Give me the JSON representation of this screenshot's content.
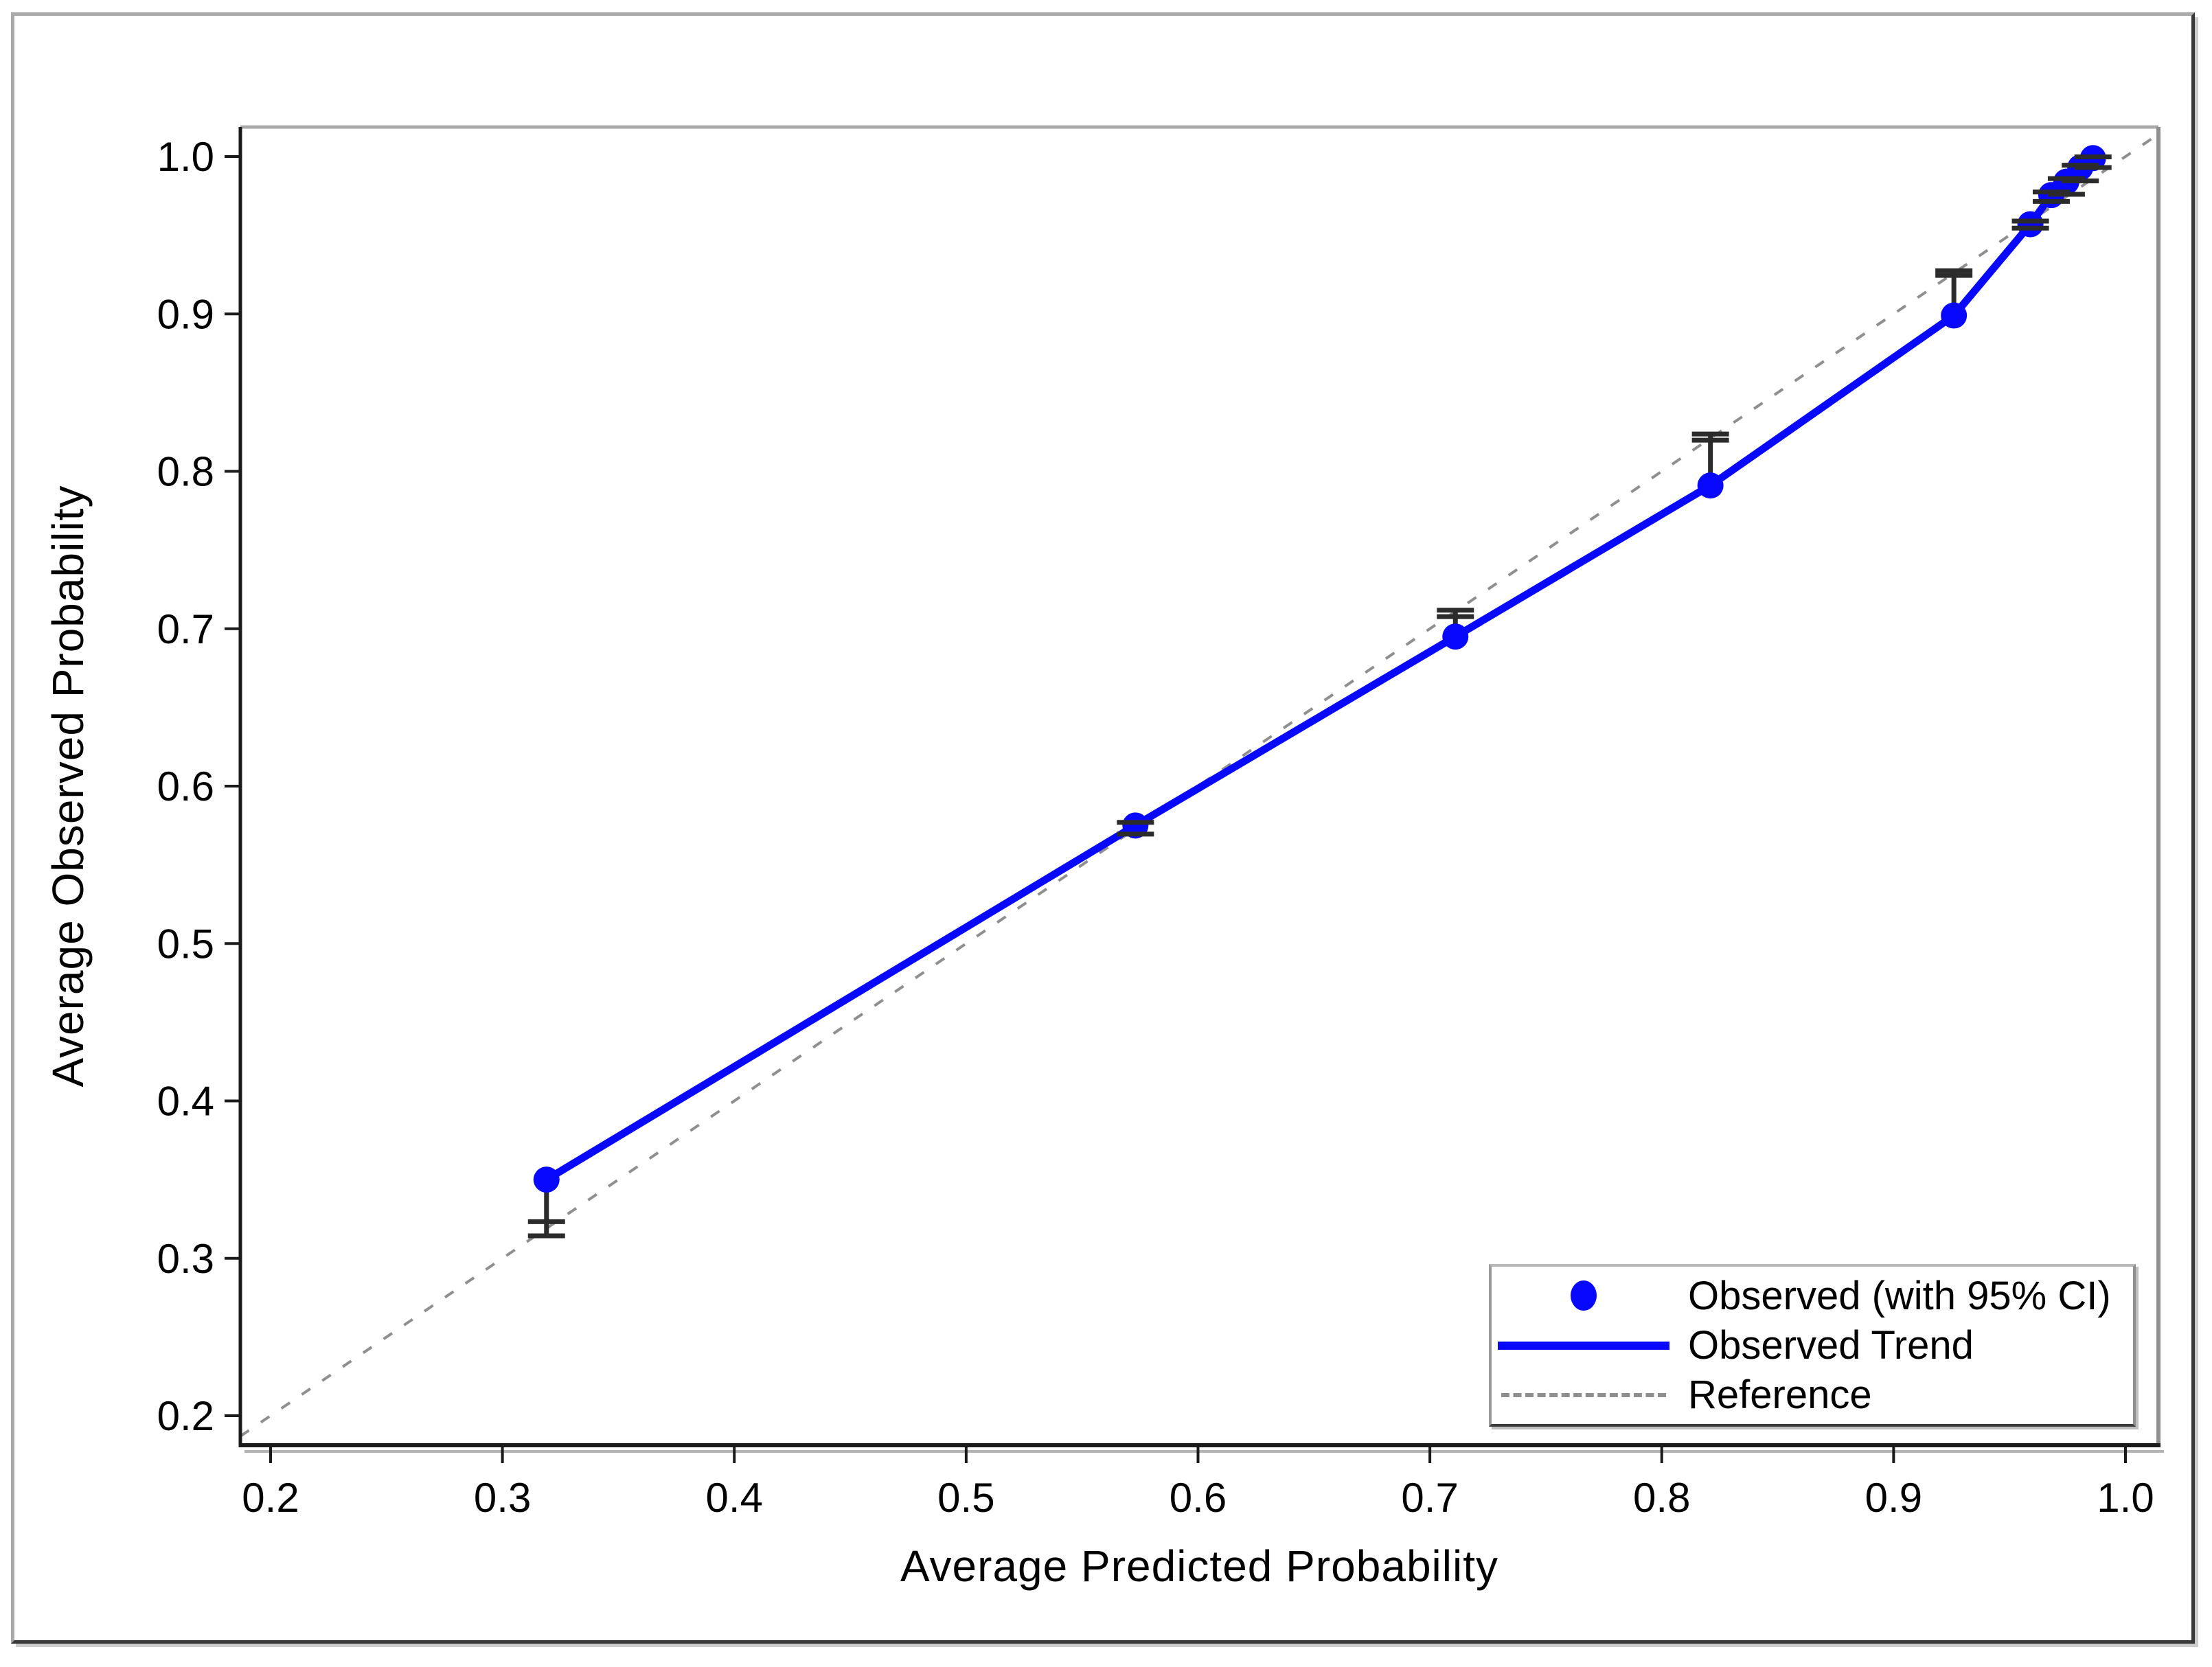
{
  "figure": {
    "kind": "calibration-plot",
    "background": "#ffffff"
  },
  "chart_data": {
    "type": "scatter",
    "title": "",
    "xlabel": "Average Predicted Probability",
    "ylabel": "Average Observed Probability",
    "xlim": [
      0.187,
      1.014
    ],
    "ylim": [
      0.181,
      1.019
    ],
    "grid": false,
    "x_ticks": [
      {
        "value": 0.2,
        "label": "0.2"
      },
      {
        "value": 0.3,
        "label": "0.3"
      },
      {
        "value": 0.4,
        "label": "0.4"
      },
      {
        "value": 0.5,
        "label": "0.5"
      },
      {
        "value": 0.6,
        "label": "0.6"
      },
      {
        "value": 0.7,
        "label": "0.7"
      },
      {
        "value": 0.8,
        "label": "0.8"
      },
      {
        "value": 0.9,
        "label": "0.9"
      },
      {
        "value": 1.0,
        "label": "1.0"
      }
    ],
    "y_ticks": [
      {
        "value": 0.2,
        "label": "0.2"
      },
      {
        "value": 0.3,
        "label": "0.3"
      },
      {
        "value": 0.4,
        "label": "0.4"
      },
      {
        "value": 0.5,
        "label": "0.5"
      },
      {
        "value": 0.6,
        "label": "0.6"
      },
      {
        "value": 0.7,
        "label": "0.7"
      },
      {
        "value": 0.8,
        "label": "0.8"
      },
      {
        "value": 0.9,
        "label": "0.9"
      },
      {
        "value": 1.0,
        "label": "1.0"
      }
    ],
    "series": [
      {
        "name": "Observed (with 95% CI)",
        "type": "scatter",
        "marker": "filled-circle",
        "color": "#0808ff",
        "error_bar_color": "#2b2b2b",
        "points": [
          {
            "x": 0.319,
            "y": 0.35,
            "ci_caps": [
              0.3143,
              0.3233
            ]
          },
          {
            "x": 0.573,
            "y": 0.575,
            "ci_caps": [
              0.5695,
              0.577
            ]
          },
          {
            "x": 0.711,
            "y": 0.695,
            "ci_caps": [
              0.7077,
              0.7118
            ]
          },
          {
            "x": 0.821,
            "y": 0.791,
            "ci_caps": [
              0.8198,
              0.8237
            ]
          },
          {
            "x": 0.926,
            "y": 0.899,
            "ci_caps": [
              0.9245,
              0.9274
            ]
          },
          {
            "x": 0.959,
            "y": 0.957,
            "ci_caps": [
              0.9545,
              0.959
            ]
          },
          {
            "x": 0.968,
            "y": 0.9755,
            "ci_caps": [
              0.9715,
              0.9775
            ]
          },
          {
            "x": 0.9745,
            "y": 0.984,
            "ci_caps": [
              0.976,
              0.986
            ]
          },
          {
            "x": 0.9805,
            "y": 0.993,
            "ci_caps": [
              0.9845,
              0.9945
            ]
          },
          {
            "x": 0.986,
            "y": 0.999,
            "ci_caps": [
              0.993,
              0.9998
            ]
          }
        ]
      },
      {
        "name": "Observed Trend",
        "type": "line",
        "color": "#0808ff",
        "connects": "observed-points"
      },
      {
        "name": "Reference",
        "type": "line",
        "style": "dashed",
        "color": "#8f8f8f",
        "identity": true,
        "from": 0.187,
        "to": 1.012
      }
    ],
    "legend": {
      "position": "bottom-right",
      "items": [
        {
          "label": "Observed (with 95% CI)",
          "marker": "dot"
        },
        {
          "label": "Observed Trend",
          "marker": "line"
        },
        {
          "label": "Reference",
          "marker": "dashed-line"
        }
      ]
    },
    "colors": {
      "observed": "#0808ff",
      "error_bar": "#2b2b2b",
      "reference": "#8f8f8f",
      "axis": "#1a1a1a",
      "wall": "#a9a9a9",
      "wall_right": "#8f8f8f",
      "text": "#000000"
    }
  }
}
